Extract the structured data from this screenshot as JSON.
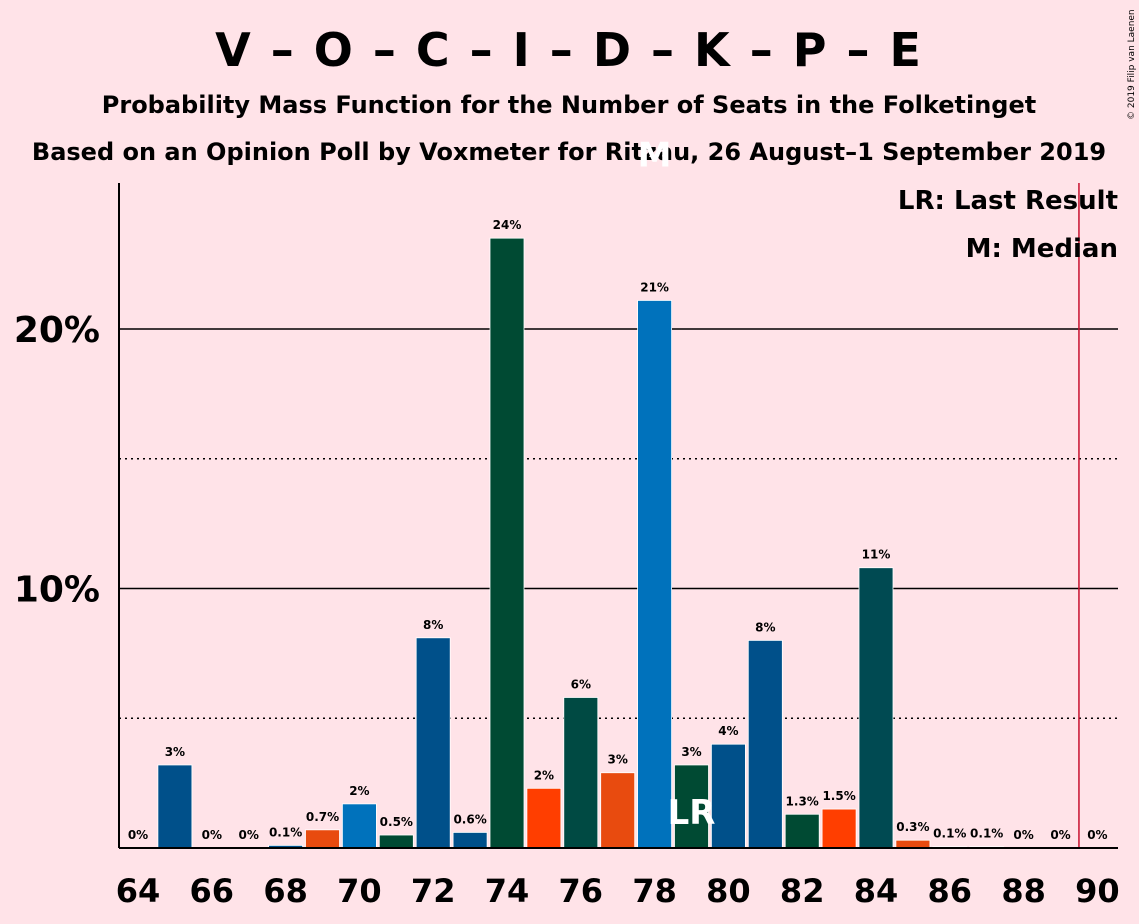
{
  "chart_data": {
    "type": "bar",
    "title": "V – O – C – I – D – K – P – E",
    "subtitle": "Probability Mass Function for the Number of Seats in the Folketinget",
    "subtitle2": "Based on an Opinion Poll by Voxmeter for Ritzau, 26 August–1 September 2019",
    "copyright": "© 2019 Filip van Laenen",
    "legend": {
      "lr": "LR: Last Result",
      "m": "M: Median",
      "placement": "top-right"
    },
    "x": [
      64,
      65,
      66,
      67,
      68,
      69,
      70,
      71,
      72,
      73,
      74,
      75,
      76,
      77,
      78,
      79,
      80,
      81,
      82,
      83,
      84,
      85,
      86,
      87,
      88,
      89,
      90
    ],
    "values": [
      0,
      3.2,
      0,
      0,
      0.1,
      0.7,
      1.7,
      0.5,
      8.1,
      0.6,
      23.5,
      2.3,
      5.8,
      2.9,
      21.1,
      3.2,
      4.0,
      8.0,
      1.3,
      1.5,
      10.8,
      0.3,
      0.05,
      0.05,
      0,
      0,
      0
    ],
    "labels": [
      "0%",
      "3%",
      "0%",
      "0%",
      "0.1%",
      "0.7%",
      "2%",
      "0.5%",
      "8%",
      "0.6%",
      "24%",
      "2%",
      "6%",
      "3%",
      "21%",
      "3%",
      "4%",
      "8%",
      "1.3%",
      "1.5%",
      "11%",
      "0.3%",
      "0.1%",
      "0.1%",
      "0%",
      "0%",
      "0%"
    ],
    "colors": [
      "#00508A",
      "#00508A",
      "#00508A",
      "#00508A",
      "#00508A",
      "#E84B0F",
      "#0072BC",
      "#004A33",
      "#00508A",
      "#00508A",
      "#004A33",
      "#FF3E00",
      "#004A43",
      "#E84B0F",
      "#0072BC",
      "#004A33",
      "#00508A",
      "#00508A",
      "#004A33",
      "#FF3E00",
      "#004A52",
      "#E84B0F",
      "#0072BC",
      "#004A33",
      "#00508A",
      "#00508A",
      "#00508A"
    ],
    "xticks": [
      "64",
      "66",
      "68",
      "70",
      "72",
      "74",
      "76",
      "78",
      "80",
      "82",
      "84",
      "86",
      "88",
      "90"
    ],
    "yticks": [
      {
        "value": 10,
        "label": "10%"
      },
      {
        "value": 20,
        "label": "20%"
      }
    ],
    "minor_grid": [
      5,
      15
    ],
    "ylim": [
      0,
      25.5
    ],
    "median": {
      "x": 78,
      "label": "M"
    },
    "last_result": {
      "x": 79,
      "label": "LR"
    },
    "majority_line": 89.5,
    "majority_color": "#C8102E"
  }
}
